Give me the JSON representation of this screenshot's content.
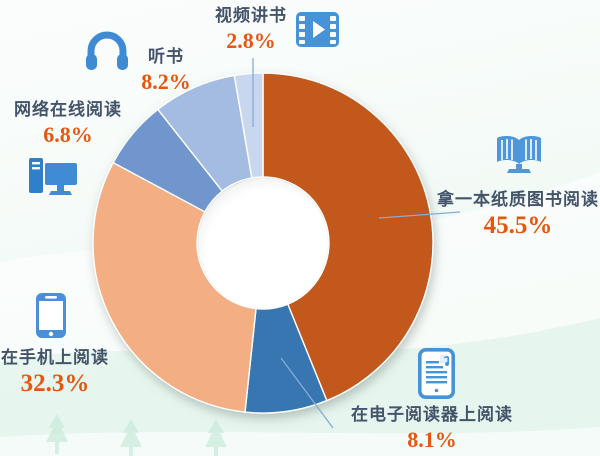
{
  "chart_data": {
    "type": "pie",
    "subtype": "donut",
    "title": "",
    "legend_position": "callouts-around-donut",
    "direction": "clockwise",
    "start_angle_deg": 0,
    "inner_radius_ratio": 0.39,
    "label_color": "#44546A",
    "percent_color": "#E8560E",
    "icon_color": "#3F8CD5",
    "series": [
      {
        "label": "拿一本纸质图书阅读",
        "value": 45.5,
        "display": "45.5%",
        "color": "#C2591B",
        "icon": "open-book-icon"
      },
      {
        "label": "在电子阅读器上阅读",
        "value": 8.1,
        "display": "8.1%",
        "color": "#3776B2",
        "icon": "ereader-icon"
      },
      {
        "label": "在手机上阅读",
        "value": 32.3,
        "display": "32.3%",
        "color": "#F3AE83",
        "icon": "smartphone-icon"
      },
      {
        "label": "网络在线阅读",
        "value": 6.8,
        "display": "6.8%",
        "color": "#7096CD",
        "icon": "desktop-computer-icon"
      },
      {
        "label": "听书",
        "value": 8.2,
        "display": "8.2%",
        "color": "#A4BBE2",
        "icon": "headphones-icon"
      },
      {
        "label": "视频讲书",
        "value": 2.8,
        "display": "2.8%",
        "color": "#C9D7EE",
        "icon": "film-icon"
      }
    ]
  }
}
